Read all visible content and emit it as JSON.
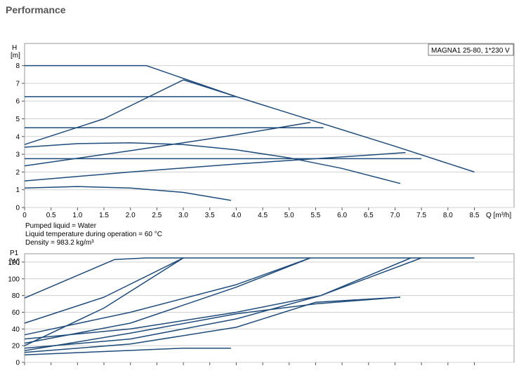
{
  "page": {
    "title": "Performance"
  },
  "colors": {
    "curve": "#1e4b7a",
    "grid": "#d0d0d0",
    "axis": "#555555"
  },
  "chart_data": [
    {
      "type": "line",
      "model_label": "MAGNA1 25-80, 1*230 V",
      "ylabel_top": "H",
      "ylabel_unit": "[m]",
      "xlabel": "Q [m³/h]",
      "xlim": [
        0,
        9.25
      ],
      "ylim": [
        0,
        9.25
      ],
      "x_ticks": [
        "0",
        "0.5",
        "1.0",
        "1.5",
        "2.0",
        "2.5",
        "3.0",
        "3.5",
        "4.0",
        "4.5",
        "5.0",
        "5.5",
        "6.0",
        "6.5",
        "7.0",
        "7.5",
        "8.0",
        "8.5"
      ],
      "y_ticks": [
        "0",
        "1",
        "2",
        "3",
        "4",
        "5",
        "6",
        "7",
        "8"
      ],
      "notes": [
        "Pumped liquid = Water",
        "Liquid temperature during operation = 60 °C",
        "Density = 983.2 kg/m³"
      ],
      "series": [
        {
          "points": [
            [
              0,
              8.0
            ],
            [
              2.3,
              8.0
            ],
            [
              4.0,
              6.25
            ],
            [
              5.5,
              4.85
            ],
            [
              7.0,
              3.45
            ],
            [
              8.5,
              2.0
            ]
          ]
        },
        {
          "points": [
            [
              0,
              6.25
            ],
            [
              4.0,
              6.25
            ]
          ]
        },
        {
          "points": [
            [
              0,
              4.5
            ],
            [
              5.65,
              4.5
            ]
          ]
        },
        {
          "points": [
            [
              0,
              2.75
            ],
            [
              7.5,
              2.75
            ]
          ]
        },
        {
          "points": [
            [
              0,
              3.55
            ],
            [
              1.5,
              5.0
            ],
            [
              3.0,
              7.2
            ]
          ]
        },
        {
          "points": [
            [
              3.0,
              7.2
            ],
            [
              4.0,
              6.25
            ]
          ]
        },
        {
          "points": [
            [
              0,
              2.35
            ],
            [
              2.0,
              3.2
            ],
            [
              4.0,
              4.1
            ],
            [
              5.4,
              4.8
            ]
          ]
        },
        {
          "points": [
            [
              0,
              1.5
            ],
            [
              2.0,
              2.0
            ],
            [
              4.0,
              2.45
            ],
            [
              6.0,
              2.85
            ],
            [
              7.2,
              3.1
            ]
          ]
        },
        {
          "points": [
            [
              0,
              3.4
            ],
            [
              1.0,
              3.6
            ],
            [
              2.0,
              3.65
            ],
            [
              3.0,
              3.55
            ],
            [
              4.0,
              3.25
            ],
            [
              5.0,
              2.8
            ],
            [
              6.0,
              2.2
            ],
            [
              7.1,
              1.35
            ]
          ]
        },
        {
          "points": [
            [
              0,
              1.1
            ],
            [
              1.0,
              1.18
            ],
            [
              2.0,
              1.1
            ],
            [
              3.0,
              0.85
            ],
            [
              3.9,
              0.4
            ]
          ]
        }
      ]
    },
    {
      "type": "line",
      "ylabel_top": "P1",
      "ylabel_unit": "[W]",
      "xlim": [
        0,
        9.25
      ],
      "ylim": [
        0,
        130
      ],
      "y_ticks": [
        "0",
        "20",
        "40",
        "60",
        "80",
        "100",
        "120"
      ],
      "series": [
        {
          "points": [
            [
              0,
              77
            ],
            [
              1.7,
              123
            ],
            [
              2.3,
              125
            ],
            [
              8.5,
              125
            ]
          ]
        },
        {
          "points": [
            [
              0,
              47
            ],
            [
              1.5,
              78
            ],
            [
              3.0,
              125
            ]
          ]
        },
        {
          "points": [
            [
              0,
              20
            ],
            [
              1.5,
              65
            ],
            [
              3.0,
              125
            ]
          ]
        },
        {
          "points": [
            [
              0,
              33
            ],
            [
              2.0,
              60
            ],
            [
              4.0,
              93
            ],
            [
              5.4,
              125
            ]
          ]
        },
        {
          "points": [
            [
              0,
              23
            ],
            [
              2.0,
              47
            ],
            [
              4.0,
              90
            ],
            [
              5.4,
              125
            ]
          ]
        },
        {
          "points": [
            [
              0,
              28
            ],
            [
              2.0,
              40
            ],
            [
              4.0,
              60
            ],
            [
              5.6,
              80
            ],
            [
              7.3,
              125
            ]
          ]
        },
        {
          "points": [
            [
              0,
              17
            ],
            [
              2.0,
              28
            ],
            [
              4.0,
              52
            ],
            [
              5.6,
              80
            ],
            [
              7.5,
              125
            ]
          ]
        },
        {
          "points": [
            [
              0,
              12
            ],
            [
              2.0,
              22
            ],
            [
              4.0,
              42
            ],
            [
              5.5,
              72
            ],
            [
              7.1,
              78
            ]
          ]
        },
        {
          "points": [
            [
              0,
              14
            ],
            [
              2.0,
              35
            ],
            [
              4.0,
              58
            ],
            [
              5.5,
              70
            ],
            [
              7.1,
              78
            ]
          ]
        },
        {
          "points": [
            [
              0,
              9
            ],
            [
              1.5,
              13
            ],
            [
              3.0,
              17
            ],
            [
              3.9,
              17
            ]
          ]
        }
      ]
    }
  ]
}
